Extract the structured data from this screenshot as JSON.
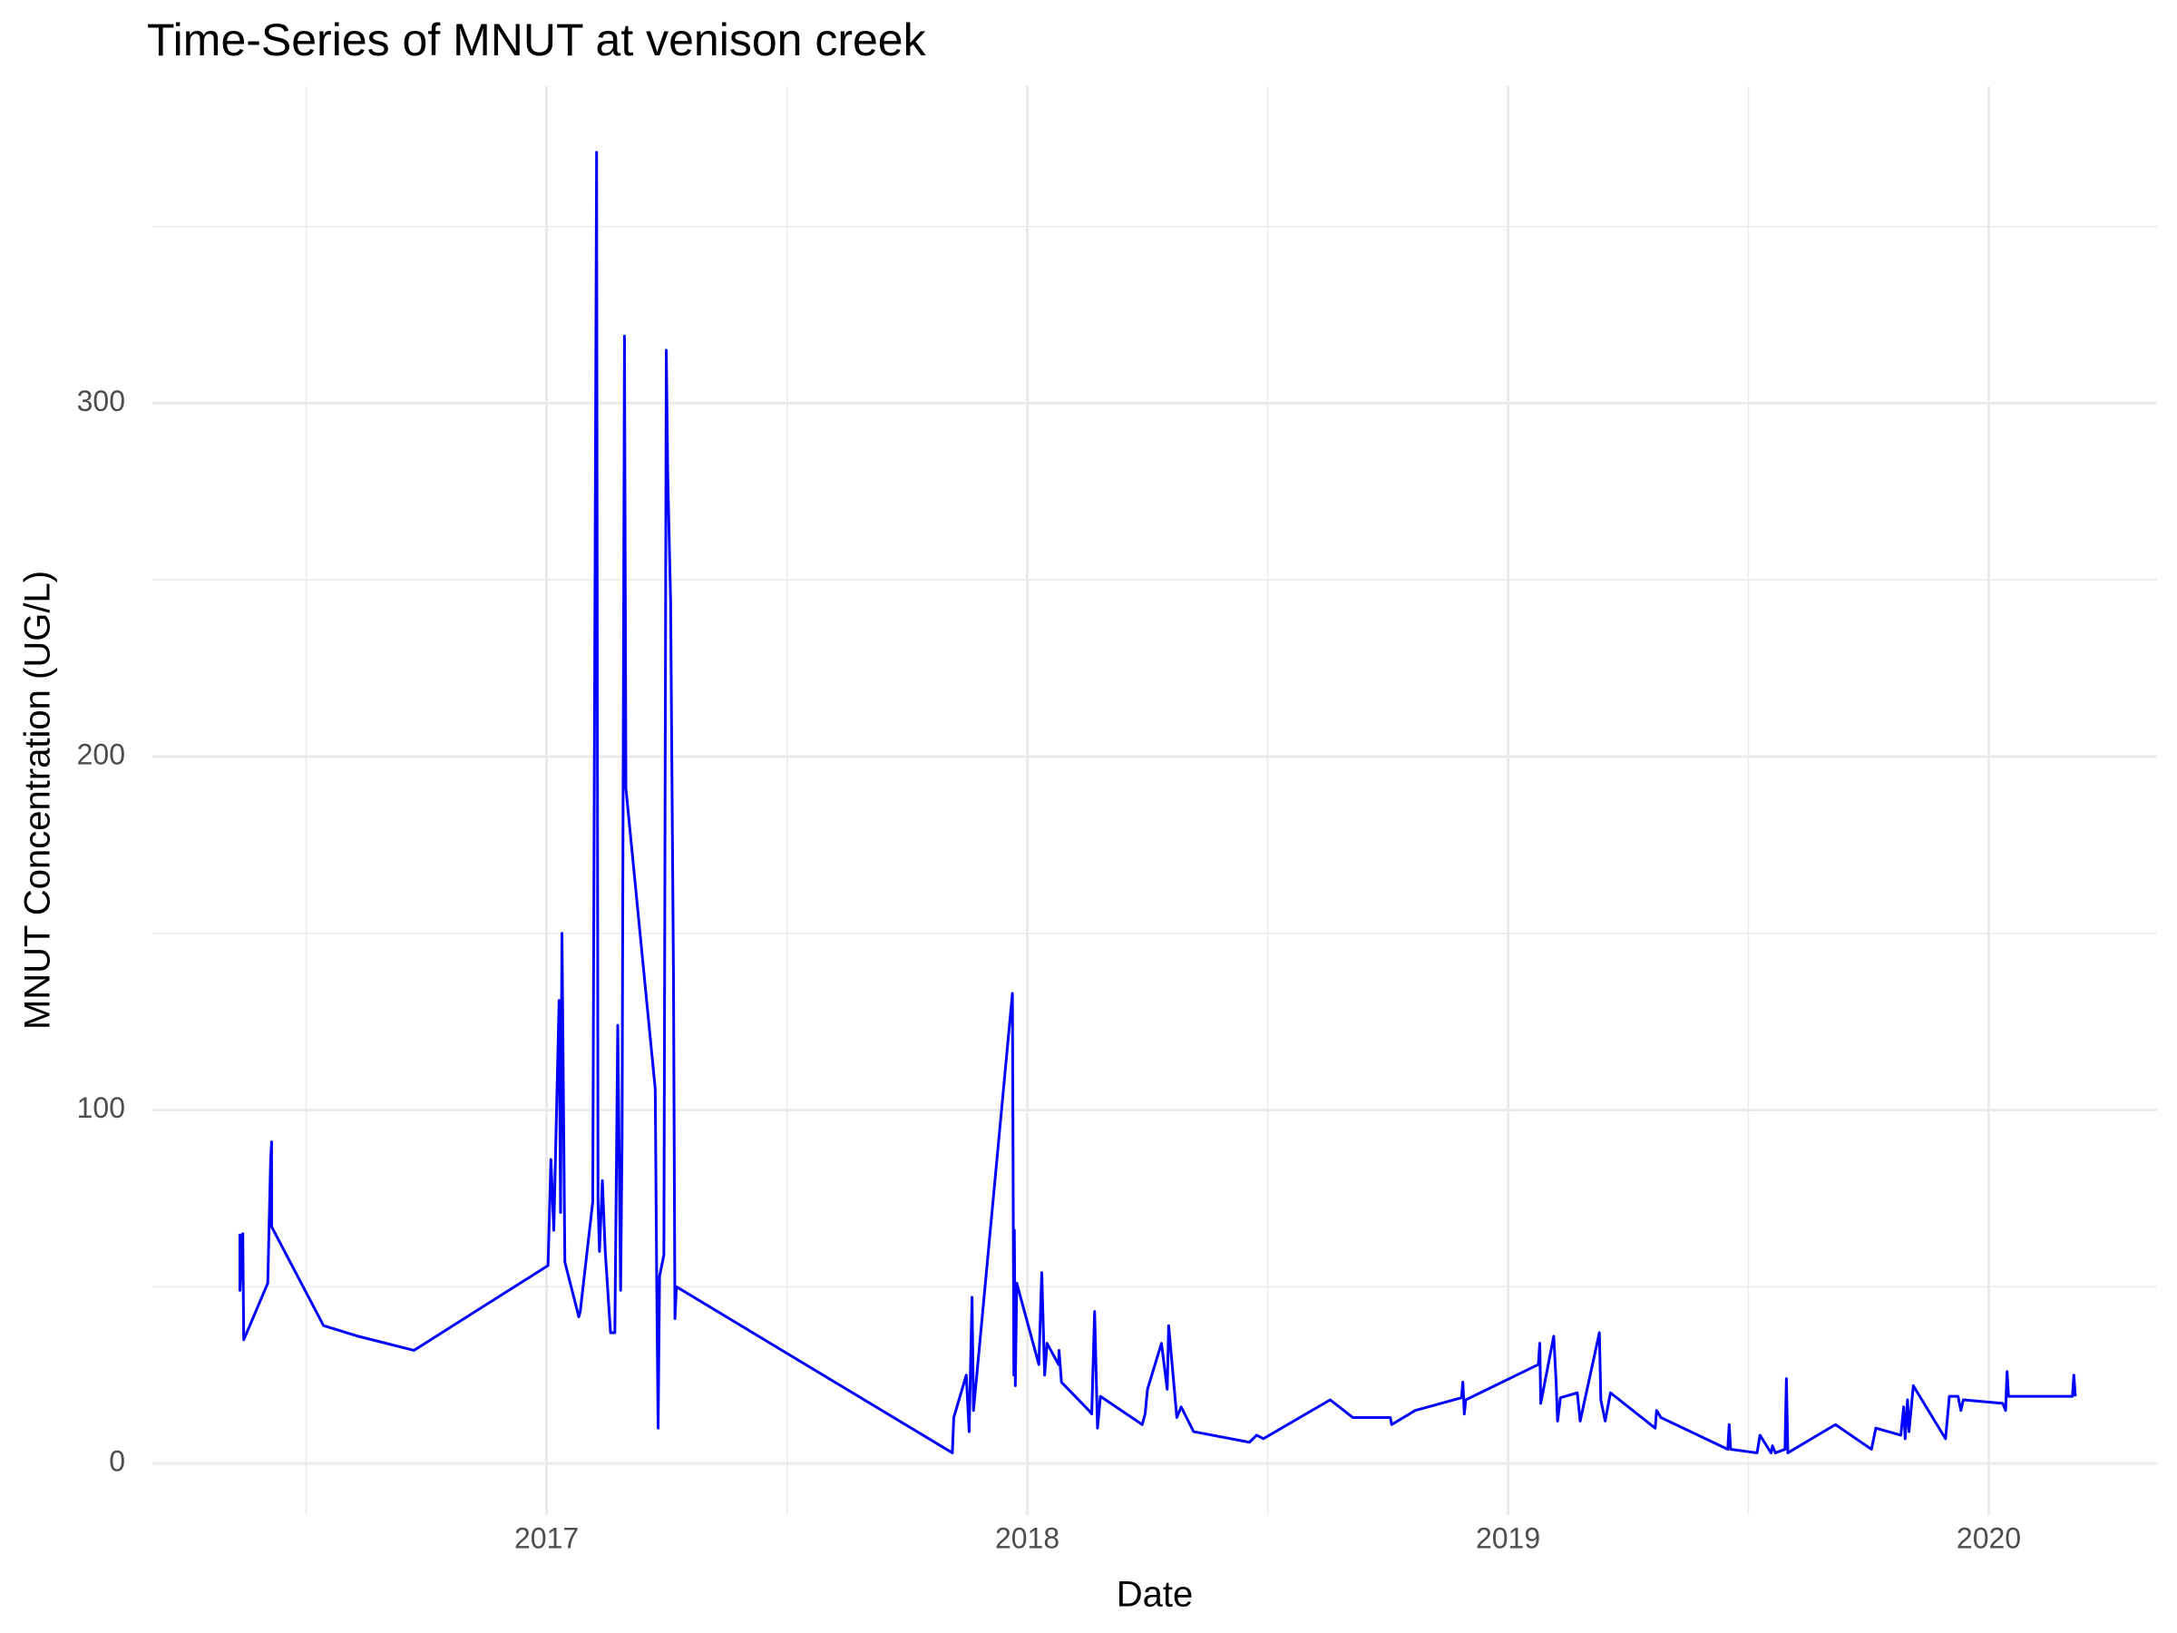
{
  "chart_data": {
    "type": "line",
    "title": "Time-Series of MNUT at venison creek",
    "x_label": "Date",
    "y_label": "MNUT Concentration (UG/L)",
    "xlim": [
      2016.18,
      2020.35
    ],
    "ylim": [
      -14.6,
      389.7
    ],
    "xticks": [
      2017,
      2018,
      2019,
      2020
    ],
    "yticks": [
      0,
      100,
      200,
      300
    ],
    "grid": true,
    "x": [
      2016.362,
      2016.362,
      2016.368,
      2016.37,
      2016.42,
      2016.426,
      2016.428,
      2016.428,
      2016.536,
      2016.608,
      2016.724,
      2017.003,
      2017.009,
      2017.015,
      2017.026,
      2017.029,
      2017.032,
      2017.038,
      2017.067,
      2017.07,
      2017.096,
      2017.104,
      2017.107,
      2017.11,
      2017.116,
      2017.122,
      2017.133,
      2017.142,
      2017.148,
      2017.154,
      2017.157,
      2017.162,
      2017.165,
      2017.226,
      2017.229,
      2017.232,
      2017.235,
      2017.244,
      2017.249,
      2017.252,
      2017.258,
      2017.264,
      2017.267,
      2017.27,
      2017.844,
      2017.847,
      2017.873,
      2017.879,
      2017.885,
      2017.888,
      2017.969,
      2017.972,
      2017.973,
      2017.975,
      2017.978,
      2018.024,
      2018.03,
      2018.036,
      2018.041,
      2018.065,
      2018.066,
      2018.071,
      2018.128,
      2018.134,
      2018.14,
      2018.146,
      2018.152,
      2018.239,
      2018.245,
      2018.25,
      2018.279,
      2018.291,
      2018.294,
      2018.311,
      2018.32,
      2018.346,
      2018.462,
      2018.477,
      2018.491,
      2018.63,
      2018.677,
      2018.755,
      2018.758,
      2018.807,
      2018.903,
      2018.906,
      2018.909,
      2018.912,
      2019.063,
      2019.066,
      2019.068,
      2019.095,
      2019.1,
      2019.103,
      2019.109,
      2019.144,
      2019.15,
      2019.19,
      2019.193,
      2019.202,
      2019.213,
      2019.306,
      2019.309,
      2019.318,
      2019.457,
      2019.46,
      2019.463,
      2019.518,
      2019.524,
      2019.547,
      2019.55,
      2019.556,
      2019.576,
      2019.579,
      2019.582,
      2019.681,
      2019.756,
      2019.765,
      2019.817,
      2019.823,
      2019.826,
      2019.831,
      2019.834,
      2019.843,
      2019.91,
      2019.918,
      2019.936,
      2019.942,
      2019.947,
      2020.029,
      2020.035,
      2020.038,
      2020.041,
      2020.174,
      2020.177,
      2020.18
    ],
    "series": [
      {
        "color": "#0000ff",
        "values": [
          65,
          49,
          65,
          35,
          51,
          86,
          91,
          67,
          39,
          36,
          32,
          56,
          86,
          66,
          131,
          71,
          150,
          57,
          41.5,
          43,
          74,
          371,
          74,
          60,
          80,
          60,
          37,
          37,
          124,
          49,
          92,
          319,
          191,
          106,
          53,
          10,
          53,
          59,
          315,
          280,
          244,
          137,
          41,
          50,
          3,
          13,
          25,
          9,
          47,
          15,
          133,
          25,
          66,
          22,
          51,
          28,
          54,
          25,
          34,
          28,
          32,
          23,
          15,
          14,
          43,
          10,
          19,
          11,
          14,
          21,
          34,
          21,
          39,
          13,
          16,
          9,
          6,
          8,
          7,
          18,
          13,
          13,
          11,
          15,
          18.6,
          23,
          14,
          18,
          28,
          34,
          17,
          36,
          23,
          12,
          18.6,
          20,
          12,
          37,
          18,
          12,
          20,
          10,
          15,
          13,
          4,
          11,
          4,
          3,
          8,
          3,
          5,
          3,
          4,
          24,
          3,
          11,
          4,
          10,
          8,
          16,
          7,
          18,
          9,
          22,
          7,
          19,
          19,
          15,
          18,
          17,
          15,
          26,
          19,
          19,
          25,
          19
        ]
      }
    ]
  }
}
